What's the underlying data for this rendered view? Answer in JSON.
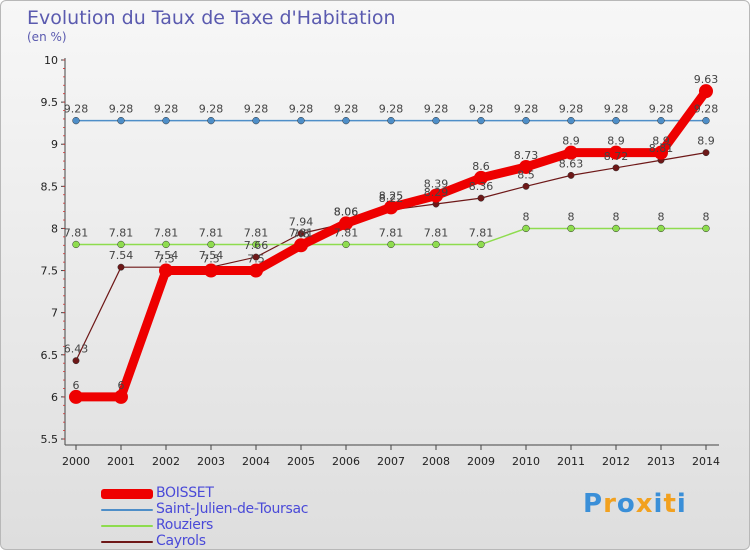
{
  "header": {
    "title": "Evolution du Taux de Taxe d'Habitation",
    "unit": "(en %)"
  },
  "chart_data": {
    "type": "line",
    "title": "Evolution du Taux de Taxe d'Habitation",
    "ylabel": "(en %)",
    "xlabel": "",
    "x": [
      "2000",
      "2001",
      "2002",
      "2003",
      "2004",
      "2005",
      "2006",
      "2007",
      "2008",
      "2009",
      "2010",
      "2011",
      "2012",
      "2013",
      "2014"
    ],
    "ylim": [
      5.5,
      10
    ],
    "yticks": [
      "5.5",
      "6",
      "6.5",
      "7",
      "7.5",
      "8",
      "8.5",
      "9",
      "9.5",
      "10"
    ],
    "grid": false,
    "legend_position": "bottom-left",
    "series": [
      {
        "name": "BOISSET",
        "color": "#ee0000",
        "values": [
          6,
          6,
          7.5,
          7.5,
          7.5,
          7.8,
          8.06,
          8.25,
          8.39,
          8.6,
          8.73,
          8.9,
          8.9,
          8.9,
          9.63
        ],
        "labels": [
          "6",
          "6",
          "7.5",
          "7.5",
          "7.5",
          "7.8",
          "8.06",
          "8.25",
          "8.39",
          "8.6",
          "8.73",
          "8.9",
          "8.9",
          "8.9",
          "9.63"
        ]
      },
      {
        "name": "Saint-Julien-de-Toursac",
        "color": "#4e8ec8",
        "values": [
          9.28,
          9.28,
          9.28,
          9.28,
          9.28,
          9.28,
          9.28,
          9.28,
          9.28,
          9.28,
          9.28,
          9.28,
          9.28,
          9.28,
          9.28
        ],
        "labels": [
          "9.28",
          "9.28",
          "9.28",
          "9.28",
          "9.28",
          "9.28",
          "9.28",
          "9.28",
          "9.28",
          "9.28",
          "9.28",
          "9.28",
          "9.28",
          "9.28",
          "9.28"
        ]
      },
      {
        "name": "Rouziers",
        "color": "#8edc4e",
        "values": [
          7.81,
          7.81,
          7.81,
          7.81,
          7.81,
          7.81,
          7.81,
          7.81,
          7.81,
          7.81,
          8,
          8,
          8,
          8,
          8
        ],
        "labels": [
          "7.81",
          "7.81",
          "7.81",
          "7.81",
          "7.81",
          "7.81",
          "7.81",
          "7.81",
          "7.81",
          "7.81",
          "8",
          "8",
          "8",
          "8",
          "8"
        ]
      },
      {
        "name": "Cayrols",
        "color": "#6e1818",
        "values": [
          6.43,
          7.54,
          7.54,
          7.54,
          7.66,
          7.94,
          8.06,
          8.22,
          8.29,
          8.36,
          8.5,
          8.63,
          8.72,
          8.81,
          8.9
        ],
        "labels": [
          "6.43",
          "7.54",
          "7.54",
          "7.54",
          "7.66",
          "7.94",
          "8.06",
          "8.22",
          "8.29",
          "8.36",
          "8.5",
          "8.63",
          "8.72",
          "8.81",
          "8.9"
        ]
      }
    ]
  },
  "logo": {
    "text": "Proxiti",
    "colors": [
      "#3a8fd8",
      "#f2a11f",
      "#3a8fd8",
      "#f2a11f",
      "#3a8fd8",
      "#f2a11f",
      "#3a8fd8"
    ]
  }
}
